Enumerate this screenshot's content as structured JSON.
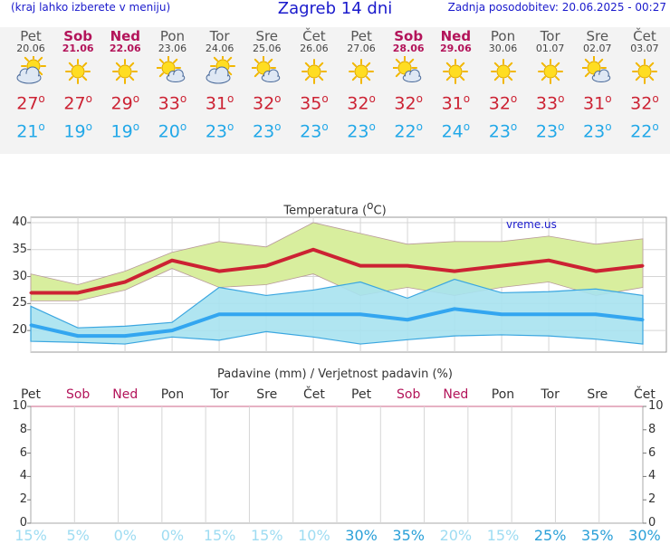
{
  "header": {
    "left": "(kraj lahko izberete v meniju)",
    "title": "Zagreb 14 dni",
    "right": "Zadnja posodobitev: 20.06.2025 - 00:27"
  },
  "days": [
    {
      "name": "Pet",
      "date": "20.06",
      "icon": "partly-cloudy-icon",
      "max": "27",
      "min": "21",
      "weekend": false
    },
    {
      "name": "Sob",
      "date": "21.06",
      "icon": "sun-icon",
      "max": "27",
      "min": "19",
      "weekend": true
    },
    {
      "name": "Ned",
      "date": "22.06",
      "icon": "sun-icon",
      "max": "29",
      "min": "19",
      "weekend": true
    },
    {
      "name": "Pon",
      "date": "23.06",
      "icon": "sun-cloud-icon",
      "max": "33",
      "min": "20",
      "weekend": false
    },
    {
      "name": "Tor",
      "date": "24.06",
      "icon": "partly-cloudy-icon",
      "max": "31",
      "min": "23",
      "weekend": false
    },
    {
      "name": "Sre",
      "date": "25.06",
      "icon": "sun-cloud-icon",
      "max": "32",
      "min": "23",
      "weekend": false
    },
    {
      "name": "Čet",
      "date": "26.06",
      "icon": "sun-icon",
      "max": "35",
      "min": "23",
      "weekend": false
    },
    {
      "name": "Pet",
      "date": "27.06",
      "icon": "sun-icon",
      "max": "32",
      "min": "23",
      "weekend": false
    },
    {
      "name": "Sob",
      "date": "28.06",
      "icon": "sun-cloud-icon",
      "max": "32",
      "min": "22",
      "weekend": true
    },
    {
      "name": "Ned",
      "date": "29.06",
      "icon": "sun-icon",
      "max": "31",
      "min": "24",
      "weekend": true
    },
    {
      "name": "Pon",
      "date": "30.06",
      "icon": "sun-icon",
      "max": "32",
      "min": "23",
      "weekend": false
    },
    {
      "name": "Tor",
      "date": "01.07",
      "icon": "sun-icon",
      "max": "33",
      "min": "23",
      "weekend": false
    },
    {
      "name": "Sre",
      "date": "02.07",
      "icon": "sun-cloud-icon",
      "max": "31",
      "min": "23",
      "weekend": false
    },
    {
      "name": "Čet",
      "date": "03.07",
      "icon": "sun-icon",
      "max": "32",
      "min": "22",
      "weekend": false
    }
  ],
  "degree_symbol": "o",
  "colors": {
    "max": "#cc2233",
    "min": "#22a8e8",
    "weekend": "#b3145a",
    "title": "#1a1acc",
    "max_band": "#d8ee9e",
    "min_band": "#a7e2f0",
    "overlap": "#a3d87a"
  },
  "chart_data": [
    {
      "type": "line",
      "title": "Temperatura (°C)",
      "watermark": "vreme.us",
      "ylim": [
        16,
        41
      ],
      "yticks": [
        20,
        25,
        30,
        35,
        40
      ],
      "grid": true,
      "series": [
        {
          "values": [
            27,
            27,
            29,
            33,
            31,
            32,
            35,
            32,
            32,
            31,
            32,
            33,
            31,
            32
          ]
        },
        {
          "values": [
            21,
            19,
            19,
            20,
            23,
            23,
            23,
            23,
            22,
            24,
            23,
            23,
            23,
            22
          ]
        }
      ],
      "max_band_upper": [
        30.5,
        28.5,
        31,
        34.5,
        36.5,
        35.5,
        40,
        38,
        36,
        36.5,
        36.5,
        37.5,
        36,
        37
      ],
      "max_band_lower": [
        25.5,
        25.5,
        27.5,
        31.5,
        28,
        28.5,
        30.5,
        26.5,
        28,
        26.5,
        28,
        29,
        26.5,
        28
      ],
      "min_band_upper": [
        24.5,
        20.5,
        20.8,
        21.5,
        28,
        26.5,
        27.5,
        29,
        26,
        29.5,
        27,
        27.2,
        27.7,
        26.5
      ],
      "min_band_lower": [
        18,
        17.8,
        17.5,
        18.8,
        18.2,
        19.8,
        18.8,
        17.5,
        18.3,
        19,
        19.2,
        19,
        18.4,
        17.5
      ]
    },
    {
      "type": "bar",
      "title": "Padavine (mm) / Verjetnost padavin (%)",
      "ylim": [
        0,
        10
      ],
      "yticks": [
        0,
        2,
        4,
        6,
        8,
        10
      ],
      "values": [
        0,
        0,
        0,
        0,
        0,
        0,
        0,
        0,
        0,
        0,
        0,
        0,
        0,
        0
      ],
      "probability": [
        "15%",
        "5%",
        "0%",
        "0%",
        "15%",
        "15%",
        "10%",
        "30%",
        "35%",
        "20%",
        "15%",
        "25%",
        "35%",
        "30%"
      ]
    }
  ]
}
